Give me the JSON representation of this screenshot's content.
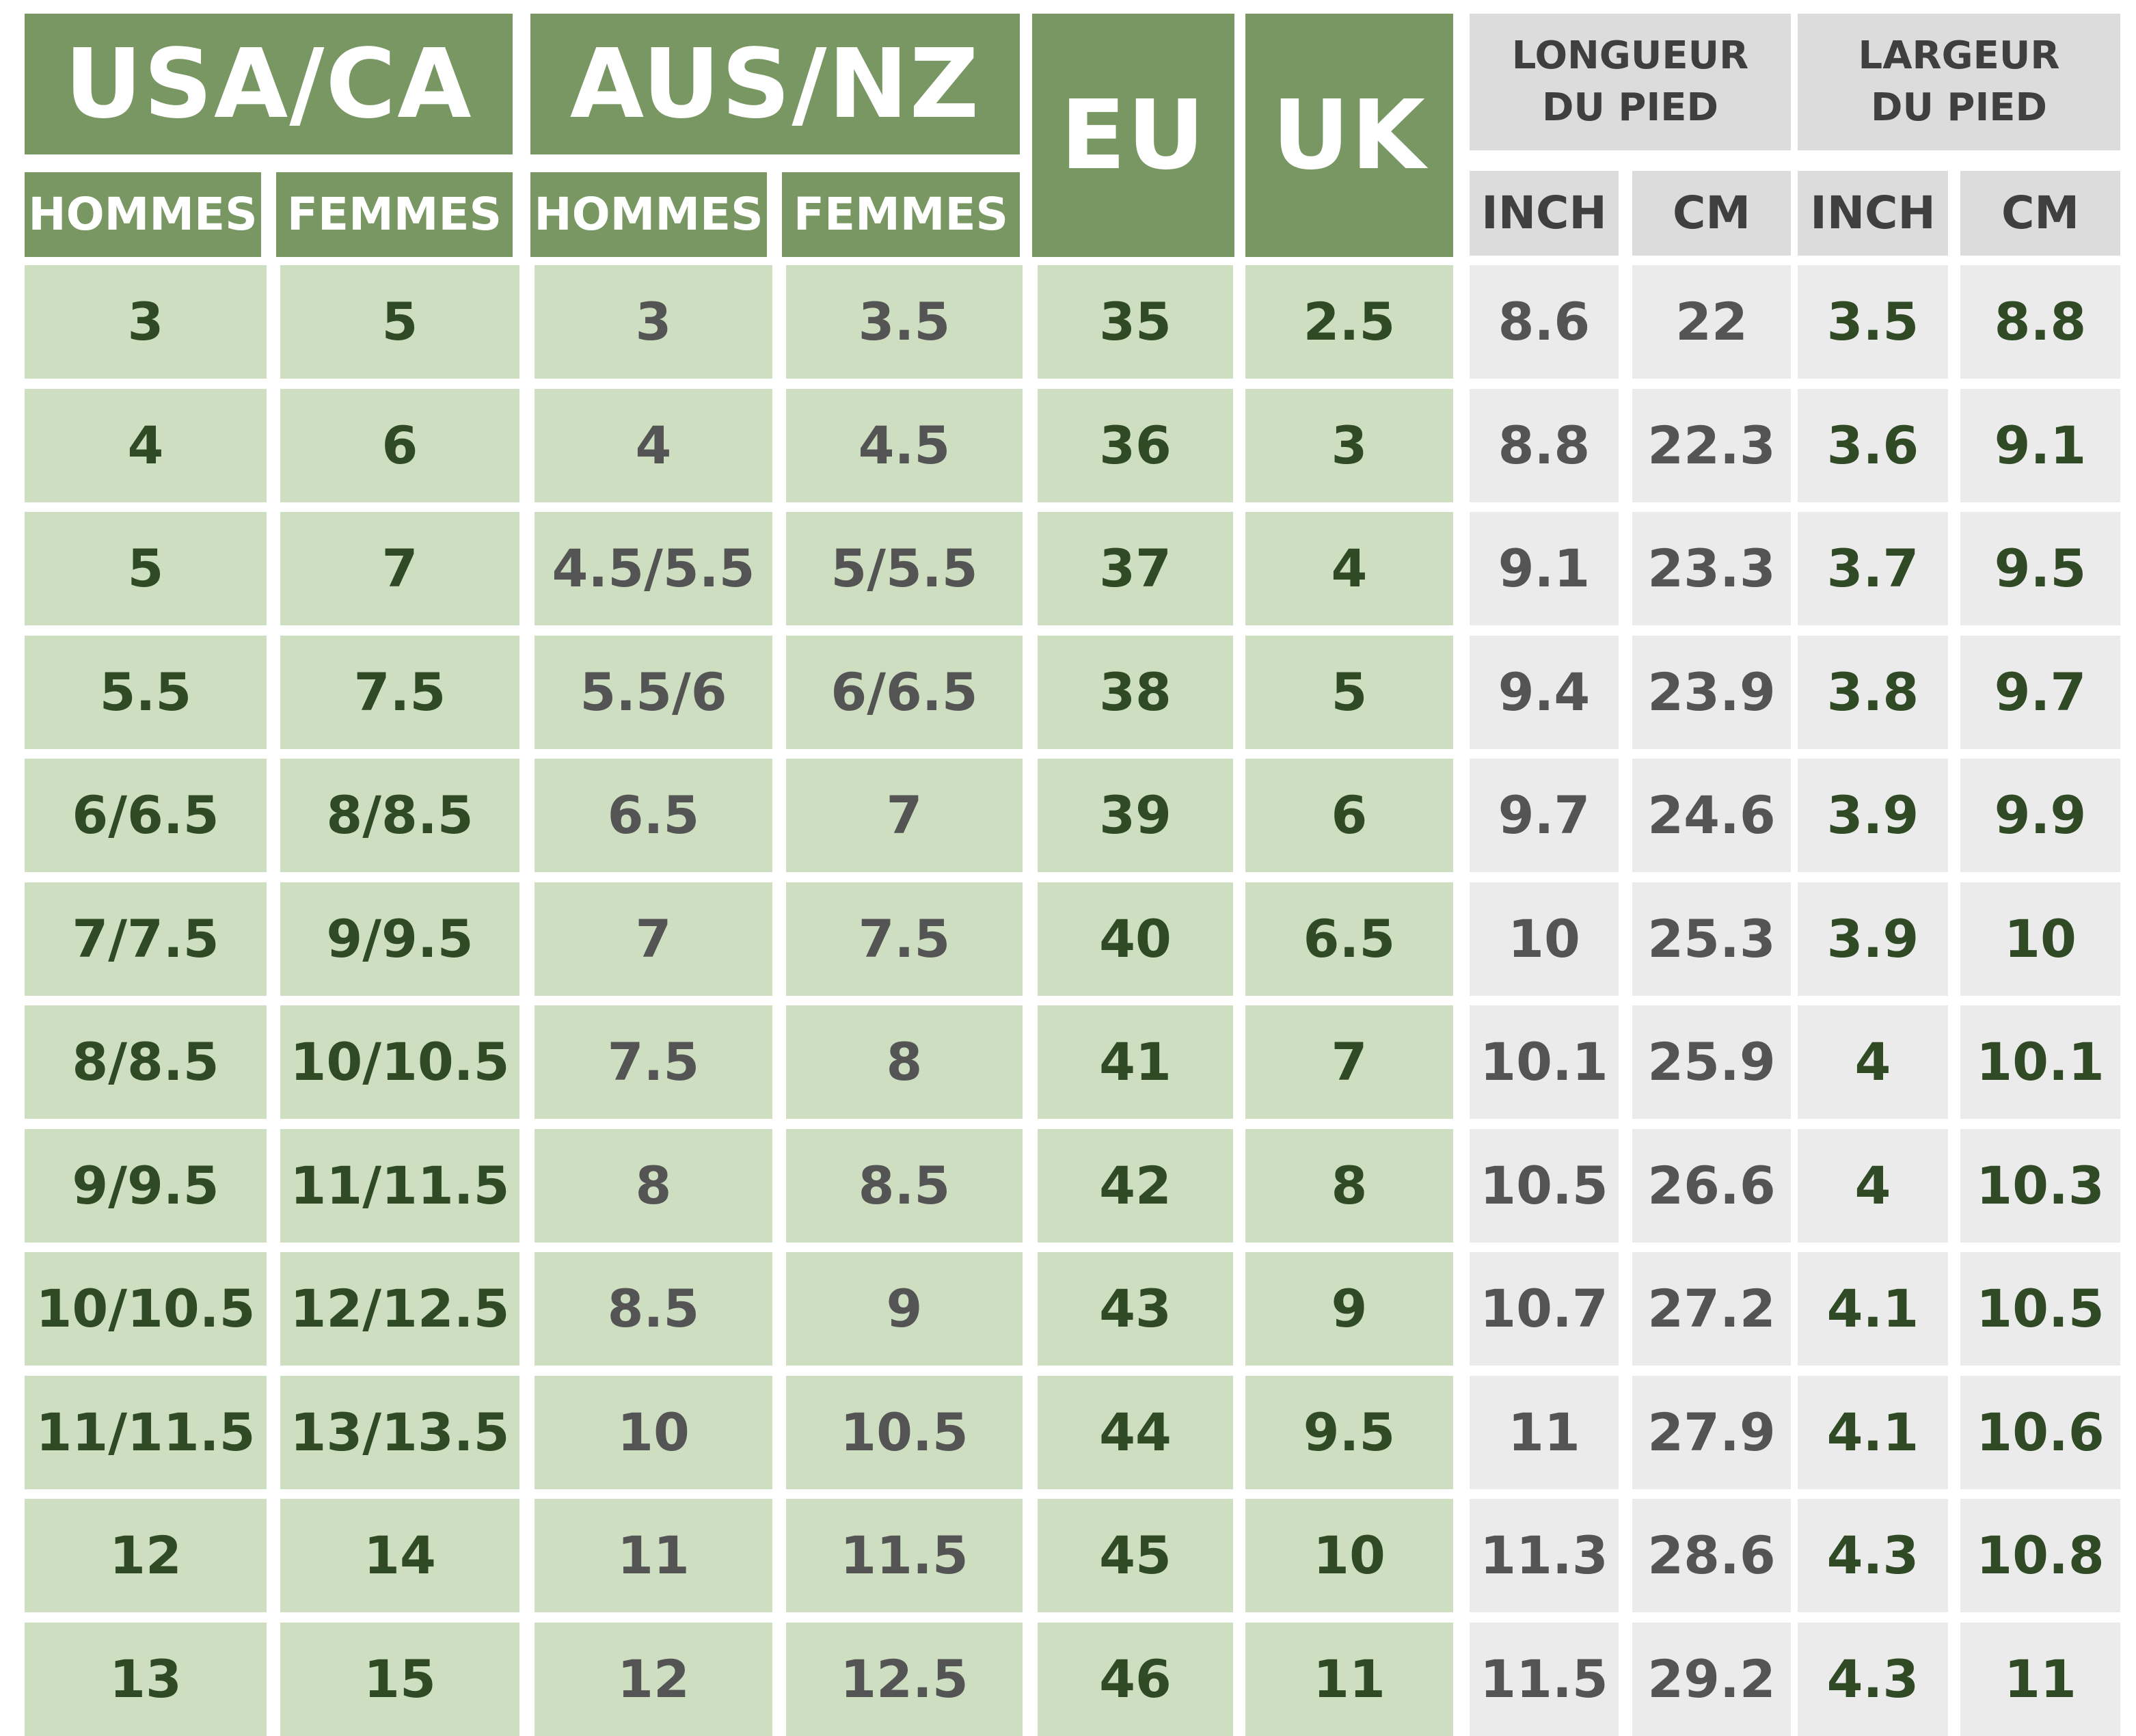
{
  "headers": {
    "usa_ca": "USA/CA",
    "aus_nz": "AUS/NZ",
    "eu": "EU",
    "uk": "UK",
    "longueur": "LONGUEUR DU PIED",
    "largeur": "LARGEUR DU PIED",
    "hommes": "HOMMES",
    "femmes": "FEMMES",
    "inch": "INCH",
    "cm": "CM"
  },
  "rows": [
    [
      "3",
      "5",
      "3",
      "3.5",
      "35",
      "2.5",
      "8.6",
      "22",
      "3.5",
      "8.8"
    ],
    [
      "4",
      "6",
      "4",
      "4.5",
      "36",
      "3",
      "8.8",
      "22.3",
      "3.6",
      "9.1"
    ],
    [
      "5",
      "7",
      "4.5/5.5",
      "5/5.5",
      "37",
      "4",
      "9.1",
      "23.3",
      "3.7",
      "9.5"
    ],
    [
      "5.5",
      "7.5",
      "5.5/6",
      "6/6.5",
      "38",
      "5",
      "9.4",
      "23.9",
      "3.8",
      "9.7"
    ],
    [
      "6/6.5",
      "8/8.5",
      "6.5",
      "7",
      "39",
      "6",
      "9.7",
      "24.6",
      "3.9",
      "9.9"
    ],
    [
      "7/7.5",
      "9/9.5",
      "7",
      "7.5",
      "40",
      "6.5",
      "10",
      "25.3",
      "3.9",
      "10"
    ],
    [
      "8/8.5",
      "10/10.5",
      "7.5",
      "8",
      "41",
      "7",
      "10.1",
      "25.9",
      "4",
      "10.1"
    ],
    [
      "9/9.5",
      "11/11.5",
      "8",
      "8.5",
      "42",
      "8",
      "10.5",
      "26.6",
      "4",
      "10.3"
    ],
    [
      "10/10.5",
      "12/12.5",
      "8.5",
      "9",
      "43",
      "9",
      "10.7",
      "27.2",
      "4.1",
      "10.5"
    ],
    [
      "11/11.5",
      "13/13.5",
      "10",
      "10.5",
      "44",
      "9.5",
      "11",
      "27.9",
      "4.1",
      "10.6"
    ],
    [
      "12",
      "14",
      "11",
      "11.5",
      "45",
      "10",
      "11.3",
      "28.6",
      "4.3",
      "10.8"
    ],
    [
      "13",
      "15",
      "12",
      "12.5",
      "46",
      "11",
      "11.5",
      "29.2",
      "4.3",
      "11"
    ]
  ],
  "colors": {
    "header_green": "#789762",
    "body_green": "#cddfc0",
    "header_grey": "#dcdcdc",
    "body_grey": "#ebebeb",
    "text_dark_green": "#2f4a24",
    "text_grey": "#545454"
  }
}
